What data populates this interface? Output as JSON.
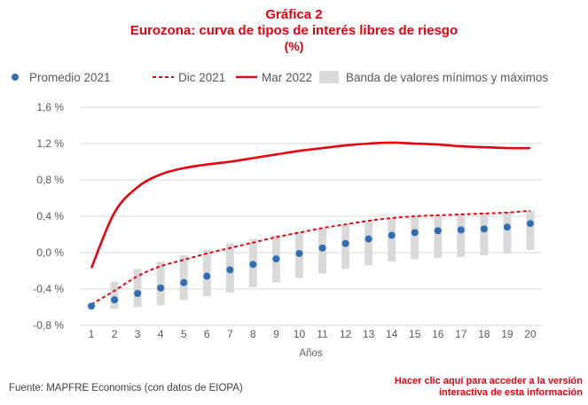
{
  "header": {
    "line1": "Gráfica 2",
    "line2": "Eurozona: curva de tipos de interés libres de riesgo",
    "line3": "(%)"
  },
  "footer": {
    "source": "Fuente: MAPFRE Economics (con datos de EIOPA)",
    "cta_line1": "Hacer clic aquí para acceder a la versión",
    "cta_line2": "interactiva de esta información"
  },
  "colors": {
    "red": "#e8000d",
    "blue": "#2f6eb5",
    "band": "#d9d9d9",
    "grid": "#d9d9d9",
    "text": "#595959"
  },
  "chart_data": {
    "type": "line",
    "xlabel": "Años",
    "ylabel": "",
    "x": [
      1,
      2,
      3,
      4,
      5,
      6,
      7,
      8,
      9,
      10,
      11,
      12,
      13,
      14,
      15,
      16,
      17,
      18,
      19,
      20
    ],
    "ylim": [
      -0.8,
      1.6
    ],
    "yticks": [
      -0.8,
      -0.4,
      0.0,
      0.4,
      0.8,
      1.2,
      1.6
    ],
    "ytick_labels": [
      "-0,8 %",
      "-0,4 %",
      "0,0 %",
      "0,4 %",
      "0,8 %",
      "1,2 %",
      "1,6 %"
    ],
    "grid": true,
    "legend_position": "top",
    "band": {
      "name": "Banda de valores mínimos y máximos",
      "min": [
        -0.6,
        -0.62,
        -0.6,
        -0.58,
        -0.52,
        -0.48,
        -0.44,
        -0.38,
        -0.33,
        -0.28,
        -0.23,
        -0.18,
        -0.14,
        -0.1,
        -0.07,
        -0.06,
        -0.05,
        -0.03,
        -0.01,
        0.03
      ],
      "max": [
        -0.57,
        -0.32,
        -0.18,
        -0.1,
        -0.03,
        0.03,
        0.1,
        0.15,
        0.19,
        0.23,
        0.27,
        0.31,
        0.35,
        0.38,
        0.4,
        0.41,
        0.43,
        0.44,
        0.45,
        0.46
      ]
    },
    "series": [
      {
        "name": "Promedio 2021",
        "style": "dots",
        "values": [
          -0.59,
          -0.52,
          -0.45,
          -0.39,
          -0.33,
          -0.26,
          -0.19,
          -0.13,
          -0.07,
          -0.01,
          0.05,
          0.1,
          0.15,
          0.19,
          0.22,
          0.24,
          0.25,
          0.26,
          0.28,
          0.32
        ]
      },
      {
        "name": "Dic 2021",
        "style": "dashed",
        "values": [
          -0.57,
          -0.42,
          -0.26,
          -0.15,
          -0.08,
          -0.01,
          0.05,
          0.11,
          0.17,
          0.22,
          0.27,
          0.31,
          0.35,
          0.38,
          0.4,
          0.41,
          0.42,
          0.43,
          0.44,
          0.46
        ]
      },
      {
        "name": "Mar 2022",
        "style": "solid",
        "values": [
          -0.17,
          0.44,
          0.72,
          0.86,
          0.93,
          0.97,
          1.0,
          1.04,
          1.08,
          1.12,
          1.15,
          1.18,
          1.2,
          1.21,
          1.2,
          1.19,
          1.17,
          1.16,
          1.15,
          1.15
        ]
      }
    ]
  }
}
